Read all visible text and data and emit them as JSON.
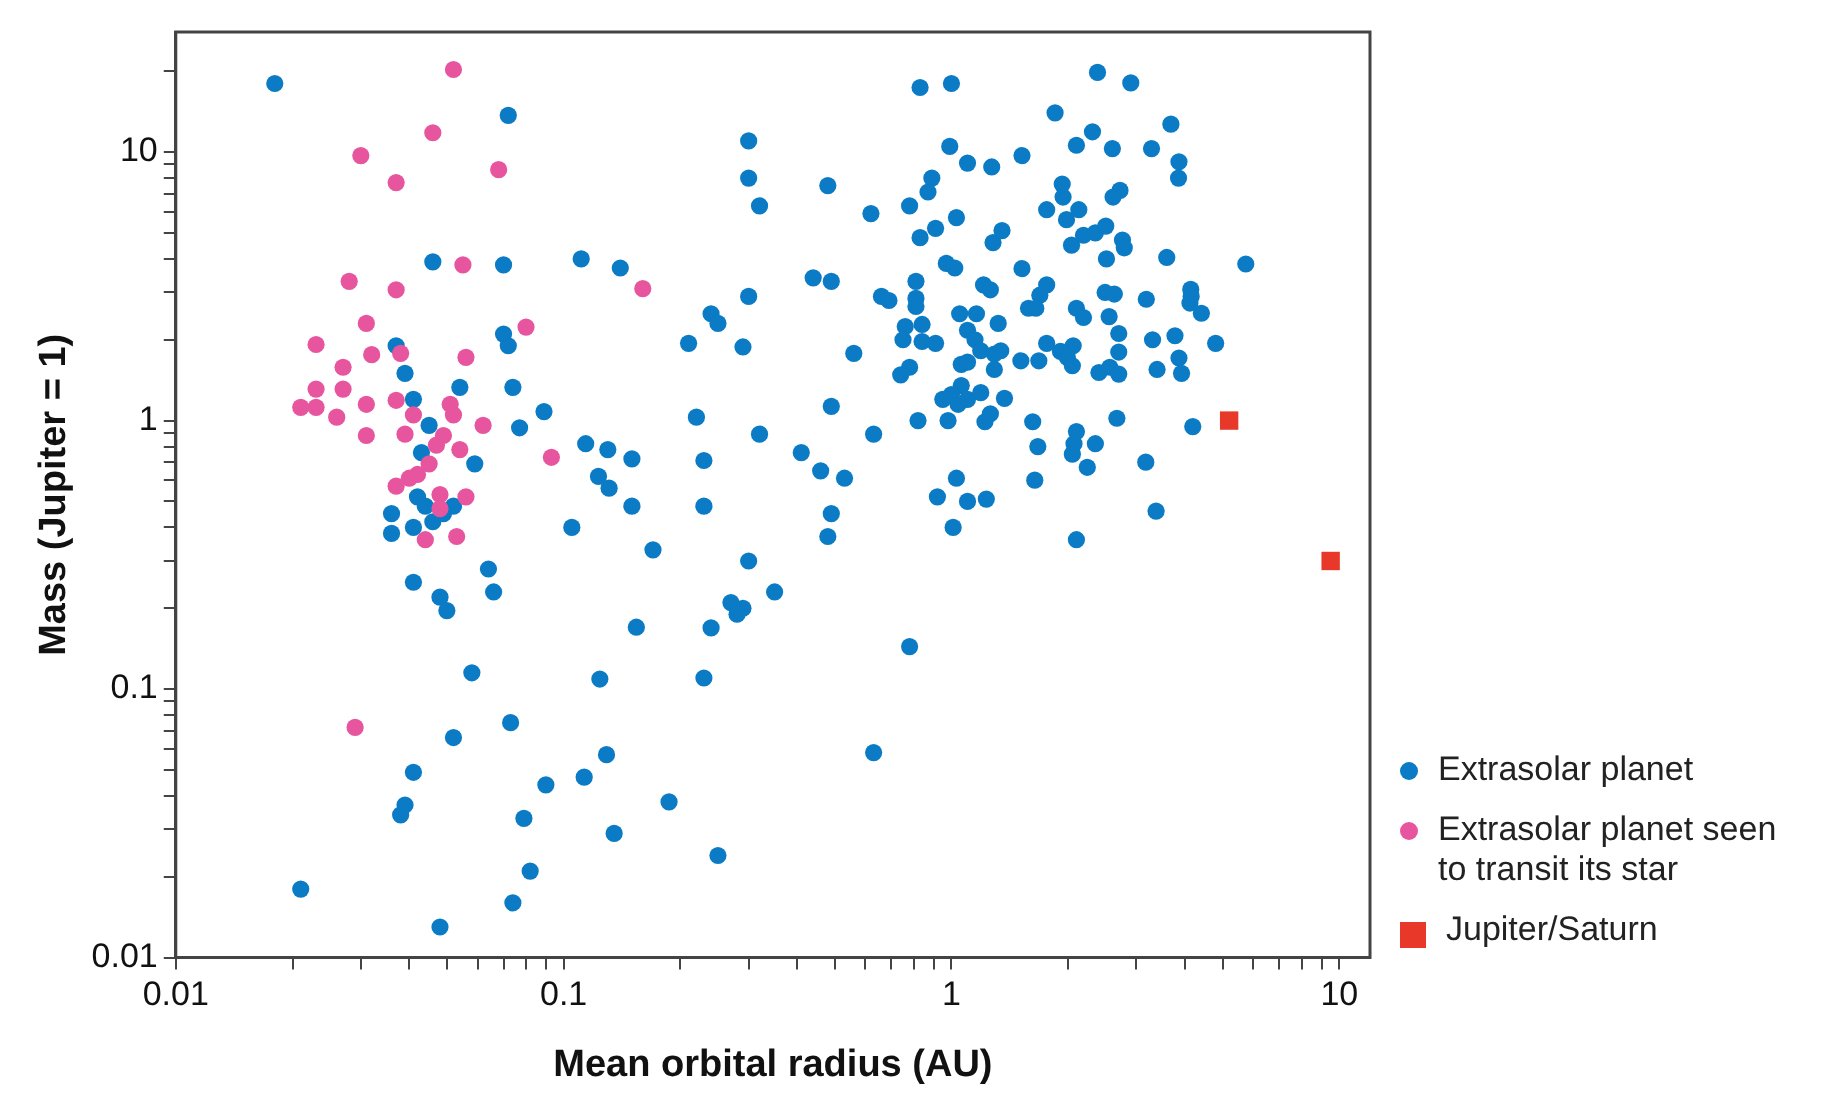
{
  "chart_data": {
    "type": "scatter",
    "xlabel": "Mean orbital radius (AU)",
    "ylabel": "Mass (Jupiter = 1)",
    "log": "xy",
    "grid": false,
    "legend": "right",
    "xlim": [
      0.01,
      12
    ],
    "ylim": [
      0.01,
      28
    ],
    "xticks": [
      0.01,
      {
        "value": 0.02,
        "label": null
      },
      {
        "value": 0.03,
        "label": null
      },
      {
        "value": 0.04,
        "label": null
      },
      {
        "value": 0.05,
        "label": null
      },
      {
        "value": 0.06,
        "label": null
      },
      {
        "value": 0.07,
        "label": null
      },
      {
        "value": 0.08,
        "label": null
      },
      {
        "value": 0.09,
        "label": null
      },
      0.1,
      {
        "value": 0.2,
        "label": null
      },
      {
        "value": 0.3,
        "label": null
      },
      {
        "value": 0.4,
        "label": null
      },
      {
        "value": 0.5,
        "label": null
      },
      {
        "value": 0.6,
        "label": null
      },
      {
        "value": 0.7,
        "label": null
      },
      {
        "value": 0.8,
        "label": null
      },
      {
        "value": 0.9,
        "label": null
      },
      1,
      {
        "value": 2,
        "label": null
      },
      {
        "value": 3,
        "label": null
      },
      {
        "value": 4,
        "label": null
      },
      {
        "value": 5,
        "label": null
      },
      {
        "value": 6,
        "label": null
      },
      {
        "value": 7,
        "label": null
      },
      {
        "value": 8,
        "label": null
      },
      {
        "value": 9,
        "label": null
      },
      10
    ],
    "yticks": [
      0.01,
      {
        "value": 0.02,
        "label": null
      },
      {
        "value": 0.03,
        "label": null
      },
      {
        "value": 0.04,
        "label": null
      },
      {
        "value": 0.05,
        "label": null
      },
      {
        "value": 0.06,
        "label": null
      },
      {
        "value": 0.07,
        "label": null
      },
      {
        "value": 0.08,
        "label": null
      },
      {
        "value": 0.09,
        "label": null
      },
      0.1,
      {
        "value": 0.2,
        "label": null
      },
      {
        "value": 0.3,
        "label": null
      },
      {
        "value": 0.4,
        "label": null
      },
      {
        "value": 0.5,
        "label": null
      },
      {
        "value": 0.6,
        "label": null
      },
      {
        "value": 0.7,
        "label": null
      },
      {
        "value": 0.8,
        "label": null
      },
      {
        "value": 0.9,
        "label": null
      },
      1,
      {
        "value": 2,
        "label": null
      },
      {
        "value": 3,
        "label": null
      },
      {
        "value": 4,
        "label": null
      },
      {
        "value": 5,
        "label": null
      },
      {
        "value": 6,
        "label": null
      },
      {
        "value": 7,
        "label": null
      },
      {
        "value": 8,
        "label": null
      },
      {
        "value": 9,
        "label": null
      },
      10,
      {
        "value": 20,
        "label": null
      }
    ],
    "series": [
      {
        "name": "Extrasolar planet",
        "color": "#0a7bc4",
        "marker": "circle",
        "x": [
          0.018,
          0.072,
          0.046,
          0.07,
          0.111,
          0.037,
          0.039,
          0.07,
          0.072,
          0.054,
          0.074,
          0.041,
          0.045,
          0.077,
          0.089,
          0.114,
          0.043,
          0.059,
          0.042,
          0.052,
          0.036,
          0.036,
          0.041,
          0.046,
          0.049,
          0.044,
          0.105,
          0.064,
          0.066,
          0.041,
          0.048,
          0.05,
          0.058,
          0.073,
          0.052,
          0.041,
          0.039,
          0.038,
          0.09,
          0.113,
          0.079,
          0.082,
          0.021,
          0.074,
          0.048,
          0.83,
          1.0,
          0.3,
          0.3,
          0.32,
          0.48,
          0.62,
          0.99,
          1.1,
          1.27,
          0.89,
          0.87,
          0.78,
          1.03,
          0.91,
          0.83,
          1.28,
          0.14,
          0.44,
          0.49,
          0.3,
          0.24,
          0.25,
          0.21,
          0.29,
          0.56,
          0.66,
          0.69,
          0.81,
          0.81,
          0.81,
          0.97,
          1.02,
          1.05,
          1.16,
          1.21,
          1.26,
          0.76,
          0.84,
          1.1,
          0.75,
          0.84,
          0.91,
          1.15,
          1.19,
          1.29,
          0.78,
          0.74,
          1.06,
          1.1,
          1.29,
          1.06,
          0.95,
          1.0,
          1.04,
          1.1,
          1.19,
          1.26,
          1.22,
          0.82,
          0.98,
          0.49,
          0.22,
          0.63,
          0.32,
          0.13,
          0.15,
          0.23,
          0.41,
          0.46,
          0.53,
          1.03,
          0.92,
          1.1,
          1.23,
          0.123,
          0.131,
          0.15,
          0.23,
          0.17,
          0.3,
          0.49,
          0.48,
          1.01,
          0.35,
          0.27,
          0.29,
          0.28,
          0.154,
          0.24,
          0.78,
          0.124,
          0.23,
          0.129,
          0.63,
          0.187,
          0.135,
          0.25,
          2.38,
          2.9,
          1.85,
          3.68,
          2.31,
          2.1,
          2.6,
          3.28,
          3.86,
          3.85,
          1.52,
          1.93,
          1.94,
          2.72,
          2.61,
          1.76,
          2.13,
          1.98,
          1.35,
          2.04,
          2.19,
          2.35,
          2.5,
          2.76,
          2.79,
          2.51,
          3.59,
          5.74,
          1.52,
          1.76,
          1.69,
          1.58,
          1.65,
          2.49,
          2.63,
          3.18,
          4.14,
          4.15,
          4.12,
          4.41,
          2.1,
          2.19,
          2.55,
          1.32,
          2.7,
          3.3,
          3.77,
          4.8,
          1.76,
          2.06,
          1.91,
          1.99,
          2.05,
          2.7,
          3.86,
          1.34,
          1.51,
          1.68,
          2.4,
          2.56,
          2.7,
          3.39,
          3.92,
          1.37,
          1.62,
          2.67,
          4.19,
          1.67,
          2.1,
          2.07,
          2.05,
          2.35,
          2.24,
          3.17,
          1.64,
          2.1,
          3.37
        ],
        "values": [
          18,
          13.7,
          3.9,
          3.8,
          4.0,
          1.9,
          1.5,
          2.1,
          1.9,
          1.33,
          1.33,
          1.2,
          0.96,
          0.94,
          1.08,
          0.82,
          0.76,
          0.69,
          0.52,
          0.48,
          0.45,
          0.38,
          0.4,
          0.42,
          0.45,
          0.48,
          0.4,
          0.28,
          0.23,
          0.25,
          0.22,
          0.196,
          0.115,
          0.075,
          0.066,
          0.049,
          0.037,
          0.034,
          0.044,
          0.047,
          0.033,
          0.021,
          0.018,
          0.016,
          0.013,
          17.4,
          18,
          11,
          8.0,
          6.3,
          7.5,
          5.9,
          10.5,
          9.1,
          8.8,
          8.0,
          7.1,
          6.3,
          5.7,
          5.2,
          4.8,
          4.6,
          3.7,
          3.4,
          3.3,
          2.9,
          2.5,
          2.3,
          1.94,
          1.88,
          1.78,
          2.9,
          2.8,
          3.3,
          2.85,
          2.66,
          3.85,
          3.7,
          2.5,
          2.5,
          3.2,
          3.07,
          2.24,
          2.28,
          2.17,
          2.0,
          1.97,
          1.94,
          2.0,
          1.82,
          1.77,
          1.58,
          1.48,
          1.62,
          1.65,
          1.55,
          1.35,
          1.2,
          1.25,
          1.15,
          1.2,
          1.27,
          1.06,
          0.99,
          1.0,
          1.0,
          1.13,
          1.03,
          0.89,
          0.89,
          0.78,
          0.72,
          0.71,
          0.76,
          0.65,
          0.61,
          0.61,
          0.52,
          0.5,
          0.51,
          0.62,
          0.56,
          0.48,
          0.48,
          0.33,
          0.3,
          0.45,
          0.37,
          0.4,
          0.23,
          0.21,
          0.2,
          0.19,
          0.17,
          0.169,
          0.144,
          0.109,
          0.11,
          0.057,
          0.058,
          0.038,
          0.029,
          0.024,
          19.8,
          18.1,
          14,
          12.7,
          11.9,
          10.6,
          10.3,
          10.3,
          9.2,
          8.0,
          9.7,
          7.6,
          6.8,
          7.2,
          6.8,
          6.1,
          6.1,
          5.6,
          5.1,
          4.5,
          4.9,
          5.0,
          5.3,
          4.7,
          4.4,
          4.0,
          4.05,
          3.83,
          3.68,
          3.2,
          2.93,
          2.62,
          2.62,
          3.0,
          2.96,
          2.83,
          3.08,
          2.9,
          2.74,
          2.51,
          2.62,
          2.42,
          2.44,
          2.3,
          2.11,
          2.0,
          2.07,
          1.94,
          1.94,
          1.9,
          1.81,
          1.72,
          1.6,
          1.8,
          1.71,
          1.82,
          1.67,
          1.67,
          1.51,
          1.58,
          1.49,
          1.55,
          1.5,
          1.21,
          0.99,
          1.02,
          0.95,
          0.8,
          0.91,
          0.82,
          0.75,
          0.82,
          0.67,
          0.7,
          0.6,
          0.36,
          0.46
        ]
      },
      {
        "name": "Extrasolar planet seen to transit its star",
        "color": "#e8559f",
        "marker": "circle",
        "x": [
          0.052,
          0.046,
          0.03,
          0.037,
          0.068,
          0.055,
          0.028,
          0.037,
          0.031,
          0.08,
          0.023,
          0.032,
          0.038,
          0.056,
          0.027,
          0.023,
          0.027,
          0.021,
          0.023,
          0.026,
          0.031,
          0.037,
          0.041,
          0.051,
          0.052,
          0.062,
          0.031,
          0.039,
          0.049,
          0.047,
          0.054,
          0.045,
          0.093,
          0.042,
          0.04,
          0.037,
          0.048,
          0.056,
          0.048,
          0.053,
          0.044,
          0.029,
          0.16
        ],
        "values": [
          20.3,
          11.8,
          9.7,
          7.7,
          8.6,
          3.8,
          3.3,
          3.07,
          2.3,
          2.23,
          1.92,
          1.76,
          1.78,
          1.72,
          1.58,
          1.31,
          1.31,
          1.12,
          1.12,
          1.03,
          1.15,
          1.19,
          1.05,
          1.15,
          1.05,
          0.96,
          0.88,
          0.89,
          0.88,
          0.81,
          0.78,
          0.69,
          0.73,
          0.63,
          0.61,
          0.57,
          0.53,
          0.52,
          0.47,
          0.37,
          0.36,
          0.072,
          3.1
        ]
      },
      {
        "name": "Jupiter/Saturn",
        "color": "#e8382a",
        "marker": "square",
        "x": [
          5.2,
          9.5
        ],
        "values": [
          1.0,
          0.3
        ]
      }
    ]
  }
}
